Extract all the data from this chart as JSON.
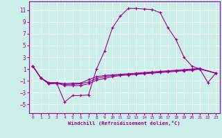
{
  "background_color": "#cceee8",
  "line_color": "#990099",
  "grid_color": "#ffffff",
  "xlabel": "Windchill (Refroidissement éolien,°C)",
  "xlim": [
    -0.5,
    23.5
  ],
  "ylim": [
    -6.5,
    12.5
  ],
  "yticks": [
    -5,
    -3,
    -1,
    1,
    3,
    5,
    7,
    9,
    11
  ],
  "xticks": [
    0,
    1,
    2,
    3,
    4,
    5,
    6,
    7,
    8,
    9,
    10,
    11,
    12,
    13,
    14,
    15,
    16,
    17,
    18,
    19,
    20,
    21,
    22,
    23
  ],
  "curve_main": {
    "x": [
      0,
      1,
      2,
      3,
      4,
      5,
      6,
      7,
      8,
      9,
      10,
      11,
      12,
      13,
      14,
      15,
      16,
      17,
      18,
      19,
      20,
      21,
      22,
      23
    ],
    "y": [
      1.5,
      -0.5,
      -1.5,
      -1.4,
      -4.6,
      -3.5,
      -3.5,
      -3.4,
      1.0,
      4.0,
      8.0,
      10.0,
      11.3,
      11.3,
      11.2,
      11.1,
      10.6,
      8.0,
      6.0,
      3.0,
      1.5,
      1.0,
      -1.3,
      0.3
    ]
  },
  "curve_flat1": {
    "x": [
      0,
      1,
      2,
      3,
      4,
      5,
      6,
      7,
      8,
      9,
      10,
      11,
      12,
      13,
      14,
      15,
      16,
      17,
      18,
      19,
      20,
      21,
      23
    ],
    "y": [
      1.5,
      -0.5,
      -1.3,
      -1.3,
      -1.5,
      -1.4,
      -1.4,
      -0.8,
      -0.3,
      -0.1,
      0.0,
      0.1,
      0.2,
      0.3,
      0.4,
      0.5,
      0.6,
      0.7,
      0.8,
      0.9,
      1.0,
      1.1,
      0.3
    ]
  },
  "curve_flat2": {
    "x": [
      0,
      1,
      2,
      3,
      4,
      5,
      6,
      7,
      8,
      9,
      10,
      11,
      12,
      13,
      14,
      15,
      16,
      17,
      18,
      19,
      20,
      21,
      23
    ],
    "y": [
      1.5,
      -0.5,
      -1.5,
      -1.4,
      -1.6,
      -1.6,
      -1.5,
      -1.2,
      -0.6,
      -0.3,
      -0.1,
      0.0,
      0.1,
      0.2,
      0.3,
      0.4,
      0.5,
      0.6,
      0.7,
      0.8,
      0.9,
      1.0,
      0.3
    ]
  },
  "curve_flat3": {
    "x": [
      0,
      1,
      2,
      3,
      4,
      5,
      6,
      7,
      8,
      9,
      10,
      11,
      12,
      13,
      14,
      15,
      16,
      17,
      18,
      19,
      20,
      21,
      23
    ],
    "y": [
      1.5,
      -0.5,
      -1.5,
      -1.4,
      -1.8,
      -1.8,
      -1.8,
      -1.5,
      -0.9,
      -0.6,
      -0.3,
      -0.1,
      0.0,
      0.1,
      0.2,
      0.3,
      0.4,
      0.5,
      0.6,
      0.7,
      0.8,
      1.0,
      0.3
    ]
  }
}
